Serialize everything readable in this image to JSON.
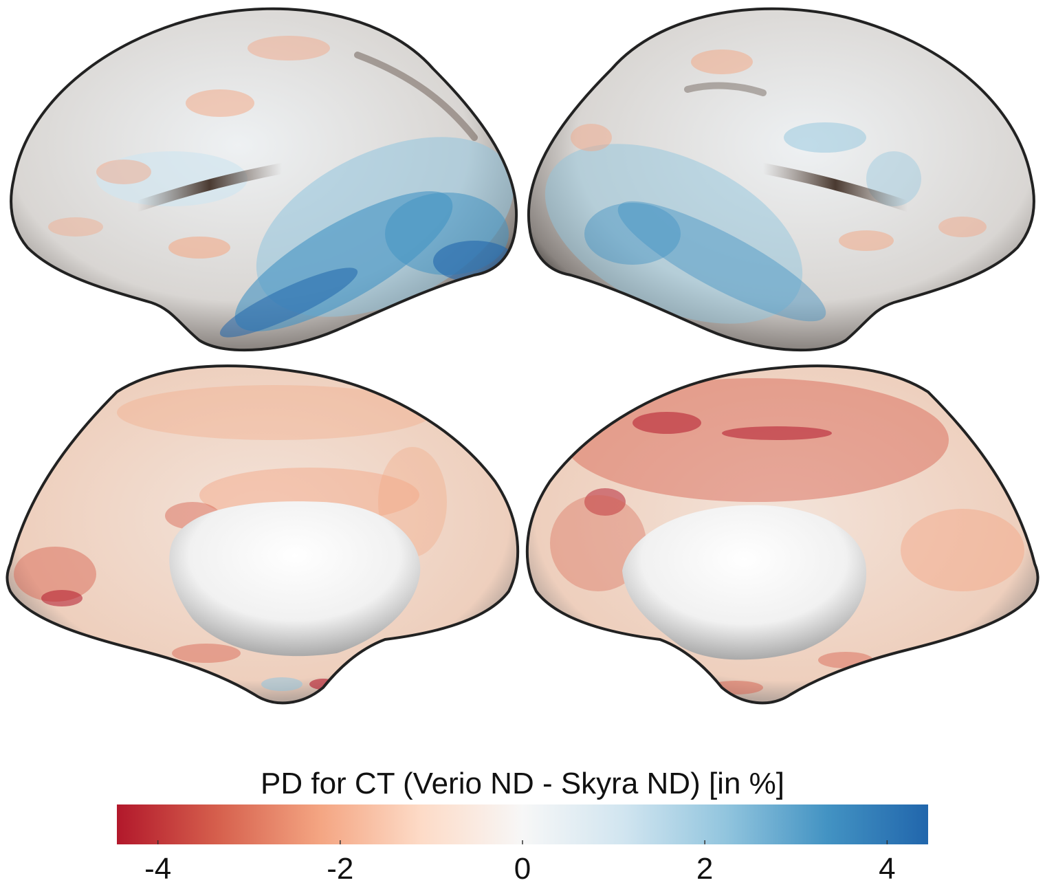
{
  "figure": {
    "views": [
      {
        "name": "left-hemisphere-lateral"
      },
      {
        "name": "right-hemisphere-lateral"
      },
      {
        "name": "left-hemisphere-medial"
      },
      {
        "name": "right-hemisphere-medial"
      }
    ]
  },
  "colorbar": {
    "title": "PD for CT (Verio ND - Skyra ND) [in %]",
    "min": -4.45,
    "max": 4.45,
    "ticks": [
      {
        "value": -4,
        "label": "-4"
      },
      {
        "value": -2,
        "label": "-2"
      },
      {
        "value": 0,
        "label": "0"
      },
      {
        "value": 2,
        "label": "2"
      },
      {
        "value": 4,
        "label": "4"
      }
    ],
    "colormap": [
      "#b2182b",
      "#d6604d",
      "#f4a582",
      "#fddbc7",
      "#f7f7f7",
      "#d1e5f0",
      "#92c5de",
      "#4393c3",
      "#2166ac"
    ]
  }
}
